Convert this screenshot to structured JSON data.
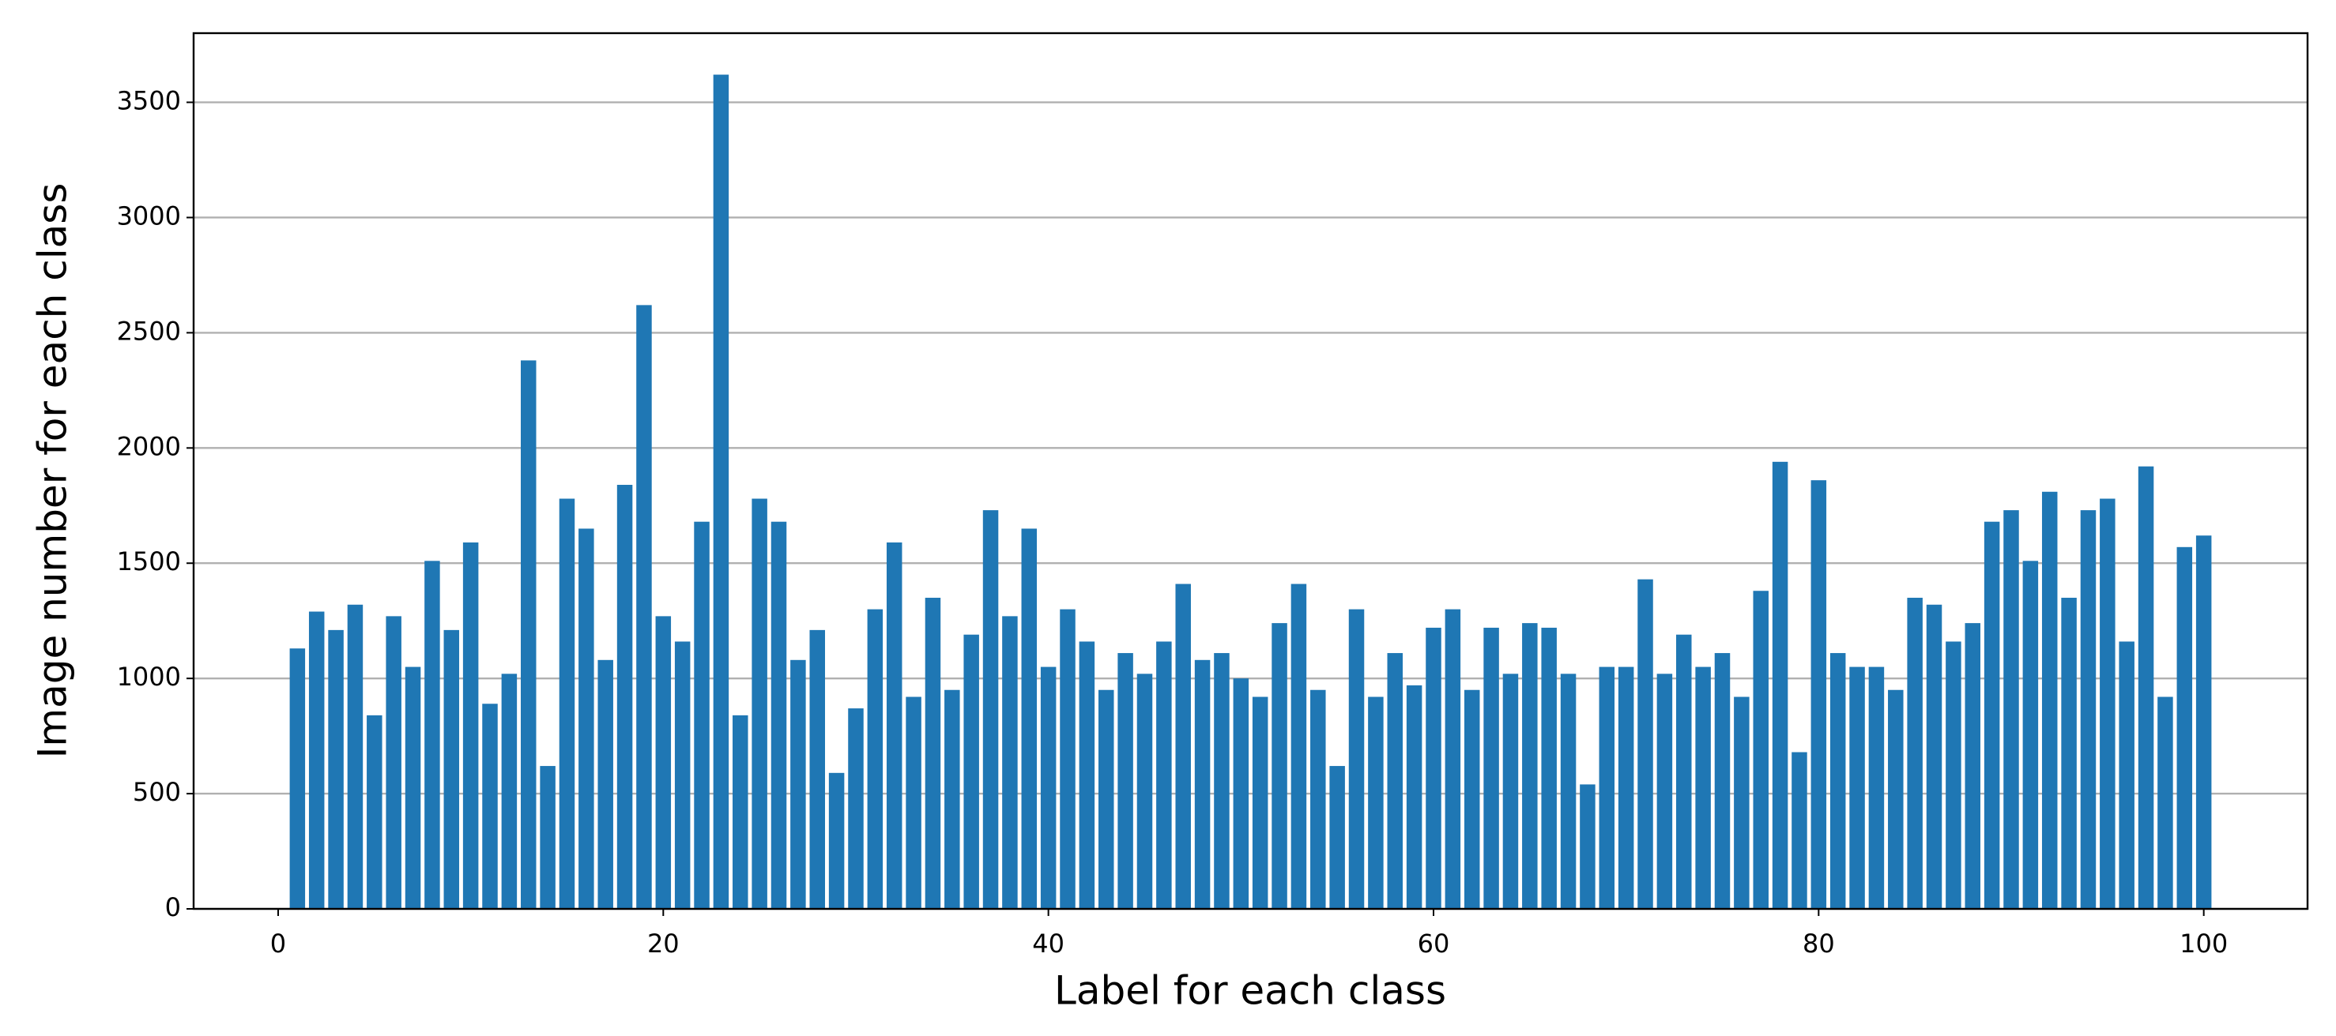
{
  "chart_data": {
    "type": "bar",
    "x_label": "Label for each class",
    "y_label": "Image number for each class",
    "color": "#1f77b4",
    "grid": "y",
    "x": [
      1,
      2,
      3,
      4,
      5,
      6,
      7,
      8,
      9,
      10,
      11,
      12,
      13,
      14,
      15,
      16,
      17,
      18,
      19,
      20,
      21,
      22,
      23,
      24,
      25,
      26,
      27,
      28,
      29,
      30,
      31,
      32,
      33,
      34,
      35,
      36,
      37,
      38,
      39,
      40,
      41,
      42,
      43,
      44,
      45,
      46,
      47,
      48,
      49,
      50,
      51,
      52,
      53,
      54,
      55,
      56,
      57,
      58,
      59,
      60,
      61,
      62,
      63,
      64,
      65,
      66,
      67,
      68,
      69,
      70,
      71,
      72,
      73,
      74,
      75,
      76,
      77,
      78,
      79,
      80,
      81,
      82,
      83,
      84,
      85,
      86,
      87,
      88,
      89,
      90,
      91,
      92,
      93,
      94,
      95,
      96,
      97,
      98,
      99,
      100
    ],
    "values": [
      1130,
      1290,
      1210,
      1320,
      840,
      1270,
      1050,
      1510,
      1210,
      1590,
      890,
      1020,
      2380,
      620,
      1780,
      1650,
      1080,
      1840,
      2620,
      1270,
      1160,
      1680,
      3620,
      840,
      1780,
      1680,
      1080,
      1210,
      590,
      870,
      1300,
      1590,
      920,
      1350,
      950,
      1190,
      1730,
      1270,
      1650,
      1050,
      1300,
      1160,
      950,
      1110,
      1020,
      1160,
      1410,
      1080,
      1110,
      1000,
      920,
      1240,
      1410,
      950,
      620,
      1300,
      920,
      1110,
      970,
      1220,
      1300,
      950,
      1220,
      1020,
      1240,
      1220,
      1020,
      540,
      1050,
      1050,
      1430,
      1020,
      1190,
      1050,
      1110,
      920,
      1380,
      1940,
      680,
      1860,
      1110,
      1050,
      1050,
      950,
      1350,
      1320,
      1160,
      1240,
      1680,
      1730,
      1510,
      1810,
      1350,
      1730,
      1780,
      1160,
      1920,
      920,
      1570,
      1620
    ],
    "xlim": [
      -4.39,
      105.39
    ],
    "ylim": [
      0,
      3800
    ],
    "xticks": [
      0,
      20,
      40,
      60,
      80,
      100
    ],
    "yticks": [
      0,
      500,
      1000,
      1500,
      2000,
      2500,
      3000,
      3500
    ]
  }
}
